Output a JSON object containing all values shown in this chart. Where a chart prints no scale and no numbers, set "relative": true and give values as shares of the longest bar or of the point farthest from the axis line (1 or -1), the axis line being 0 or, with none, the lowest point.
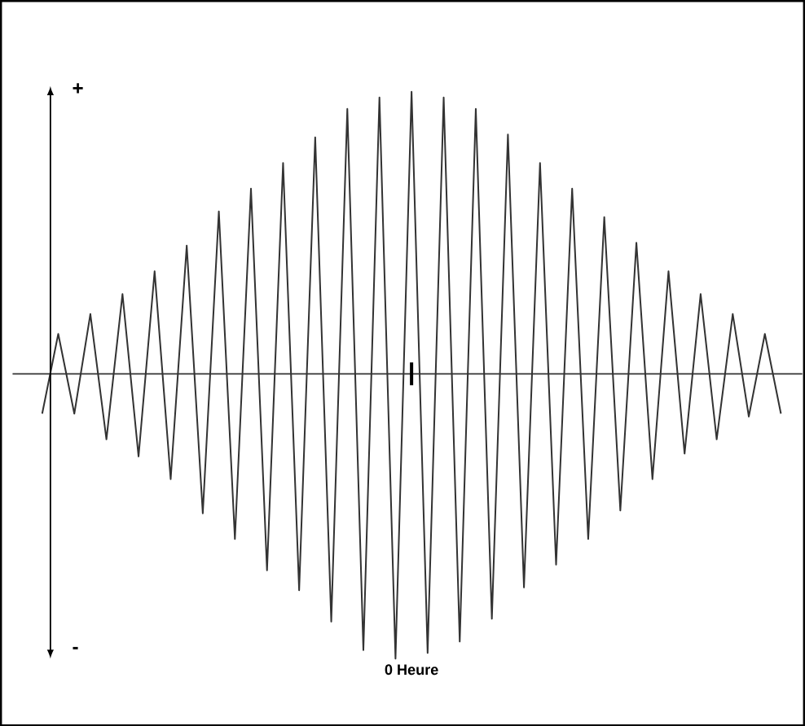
{
  "chart_data": {
    "type": "line",
    "relative": true,
    "color": "#333333",
    "xlabel": "0 Heure",
    "annotations": [
      "+",
      "-"
    ],
    "categories": [
      null,
      null,
      null,
      null,
      null,
      null,
      null,
      null,
      null,
      null,
      null,
      null,
      null,
      null,
      null,
      null,
      null,
      null,
      null,
      null,
      null,
      null,
      null,
      null,
      null,
      null,
      null,
      null,
      null,
      null,
      null,
      null,
      null,
      null,
      null,
      null,
      null,
      null,
      null,
      null,
      null,
      null,
      null,
      null,
      null,
      null,
      null
    ],
    "values": [
      -0.14,
      0.14,
      -0.14,
      0.21,
      -0.23,
      0.28,
      -0.29,
      0.36,
      -0.37,
      0.45,
      -0.49,
      0.57,
      -0.58,
      0.65,
      -0.69,
      0.74,
      -0.76,
      0.83,
      -0.87,
      0.93,
      -0.97,
      0.97,
      -1,
      0.99,
      -0.98,
      0.97,
      -0.94,
      0.93,
      -0.86,
      0.84,
      -0.75,
      0.74,
      -0.67,
      0.65,
      -0.58,
      0.55,
      -0.48,
      0.46,
      -0.37,
      0.36,
      -0.28,
      0.28,
      -0.23,
      0.21,
      -0.15,
      0.14,
      -0.14
    ]
  }
}
